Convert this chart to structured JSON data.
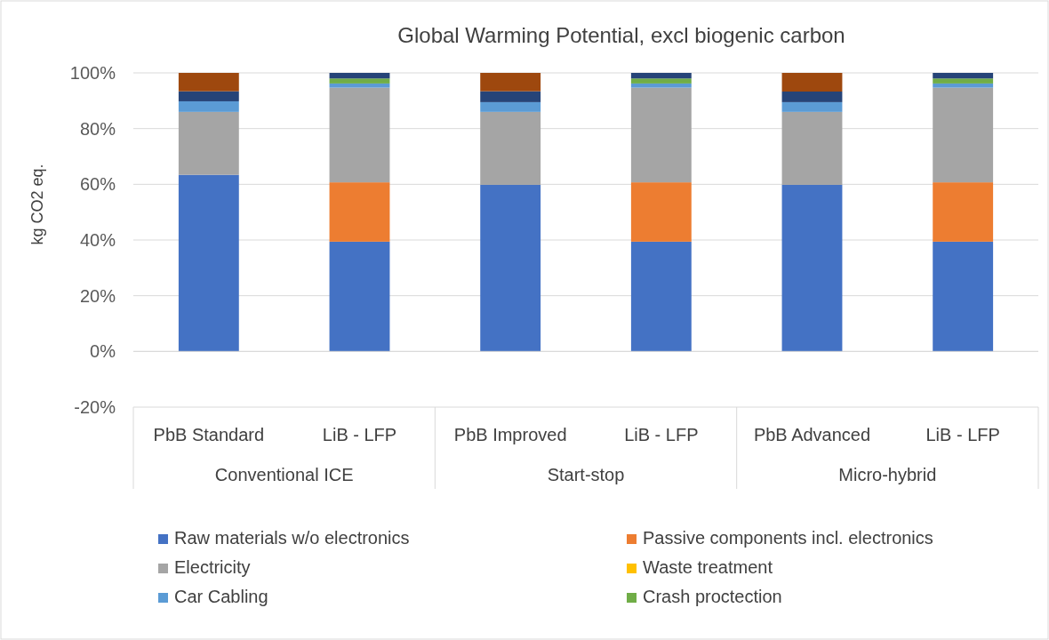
{
  "chart_data": {
    "type": "bar",
    "stacked": true,
    "title": "Global Warming Potential, excl biogenic carbon",
    "ylabel": "kg CO2 eq.",
    "categories": [
      "PbB Standard",
      "LiB - LFP",
      "PbB Improved",
      "LiB - LFP",
      "PbB Advanced",
      "LiB - LFP"
    ],
    "annotations": [
      "Conventional ICE",
      "Start-stop",
      "Micro-hybrid"
    ],
    "series": [
      {
        "name": "Raw materials w/o electronics",
        "color": "#4472c4",
        "values": [
          63.4,
          39.4,
          59.8,
          39.4,
          59.8,
          39.4
        ]
      },
      {
        "name": "Passive components incl. electronics",
        "color": "#ed7d31",
        "values": [
          0,
          21.3,
          0,
          21.3,
          0,
          21.3
        ]
      },
      {
        "name": "Electricity",
        "color": "#a5a5a5",
        "values": [
          22.6,
          34,
          26.2,
          34,
          26.2,
          34
        ]
      },
      {
        "name": "Waste treatment",
        "color": "#ffc000",
        "values": [
          0,
          0,
          0,
          0,
          0,
          0
        ]
      },
      {
        "name": "Car Cabling",
        "color": "#5b9bd5",
        "values": [
          3.8,
          1.5,
          3.5,
          1.5,
          3.5,
          1.5
        ]
      },
      {
        "name": "Crash proctection",
        "color": "#70ad47",
        "values": [
          0,
          1.8,
          0,
          1.8,
          0,
          1.8
        ]
      },
      {
        "color": "#264478",
        "values": [
          3.6,
          2,
          3.9,
          2,
          3.8,
          2
        ]
      },
      {
        "color": "#9e480e",
        "values": [
          6.6,
          0,
          6.6,
          0,
          6.7,
          0
        ]
      }
    ],
    "ylim": [
      -20,
      100
    ],
    "yticks": [
      {
        "value": -20,
        "label": "-20%"
      },
      {
        "value": 0,
        "label": "0%"
      },
      {
        "value": 20,
        "label": "20%"
      },
      {
        "value": 40,
        "label": "40%"
      },
      {
        "value": 60,
        "label": "60%"
      },
      {
        "value": 80,
        "label": "80%"
      },
      {
        "value": 100,
        "label": "100%"
      }
    ],
    "grid": "y",
    "legend": "bottom"
  }
}
